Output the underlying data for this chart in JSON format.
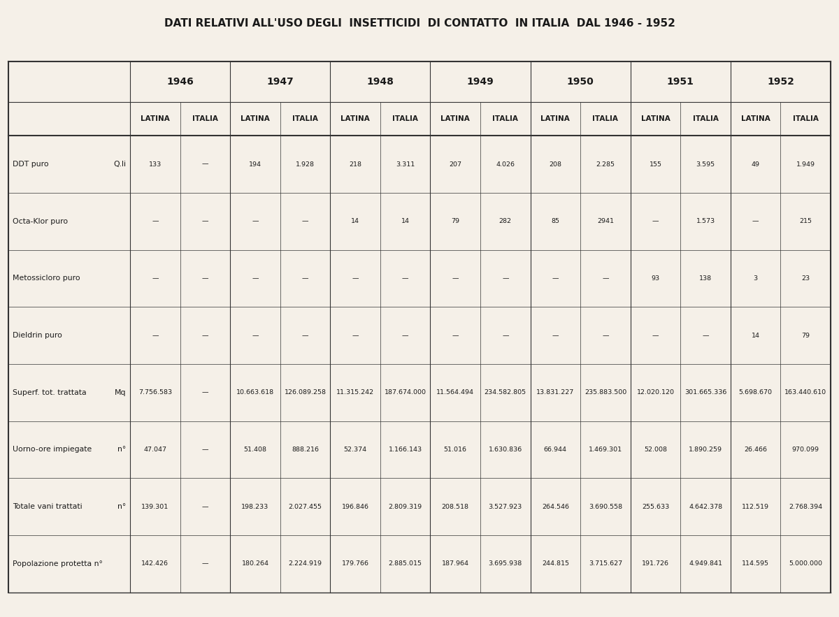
{
  "title": "DATI RELATIVI ALL'USO DEGLI  INSETTICIDI  DI CONTATTO  IN ITALIA  DAL 1946 - 1952",
  "background_color": "#f5f0e8",
  "years": [
    "1946",
    "1947",
    "1948",
    "1949",
    "1950",
    "1951",
    "1952"
  ],
  "subheaders": [
    "LATINA",
    "ITALIA"
  ],
  "rows": [
    {
      "label": "DDT puro",
      "unit": "Q.li",
      "values": [
        "133",
        "—",
        "194",
        "1.928",
        "218",
        "3.311",
        "207",
        "4.026",
        "208",
        "2.285",
        "155",
        "3.595",
        "49",
        "1.949"
      ]
    },
    {
      "label": "Octa-Klor puro",
      "unit": "",
      "values": [
        "—",
        "—",
        "—",
        "—",
        "14",
        "14",
        "79",
        "282",
        "85",
        "2941",
        "—",
        "1.573",
        "—",
        "215"
      ]
    },
    {
      "label": "Metossicloro puro",
      "unit": "",
      "values": [
        "—",
        "—",
        "—",
        "—",
        "—",
        "—",
        "—",
        "—",
        "—",
        "—",
        "93",
        "138",
        "3",
        "23"
      ]
    },
    {
      "label": "Dieldrin puro",
      "unit": "",
      "values": [
        "—",
        "—",
        "—",
        "—",
        "—",
        "—",
        "—",
        "—",
        "—",
        "—",
        "—",
        "—",
        "14",
        "79"
      ]
    },
    {
      "label": "Superf. tot. trattata",
      "unit": "Mq",
      "values": [
        "7.756.583",
        "—",
        "10.663.618",
        "126.089.258",
        "11.315.242",
        "187.674.000",
        "11.564.494",
        "234.582.805",
        "13.831.227",
        "235.883.500",
        "12.020.120",
        "301.665.336",
        "5.698.670",
        "163.440.610"
      ]
    },
    {
      "label": "Uorno-ore impiegate",
      "unit": "n°",
      "values": [
        "47.047",
        "—",
        "51.408",
        "888.216",
        "52.374",
        "1.166.143",
        "51.016",
        "1.630.836",
        "66.944",
        "1.469.301",
        "52.008",
        "1.890.259",
        "26.466",
        "970.099"
      ]
    },
    {
      "label": "Totale vani trattati",
      "unit": "n°",
      "values": [
        "139.301",
        "—",
        "198.233",
        "2.027.455",
        "196.846",
        "2.809.319",
        "208.518",
        "3.527.923",
        "264.546",
        "3.690.558",
        "255.633",
        "4.642.378",
        "112.519",
        "2.768.394"
      ]
    },
    {
      "label": "Popolazione protetta n°",
      "unit": "",
      "values": [
        "142.426",
        "—",
        "180.264",
        "2.224.919",
        "179.766",
        "2.885.015",
        "187.964",
        "3.695.938",
        "244.815",
        "3.715.627",
        "191.726",
        "4.949.841",
        "114.595",
        "5.000.000"
      ]
    }
  ]
}
